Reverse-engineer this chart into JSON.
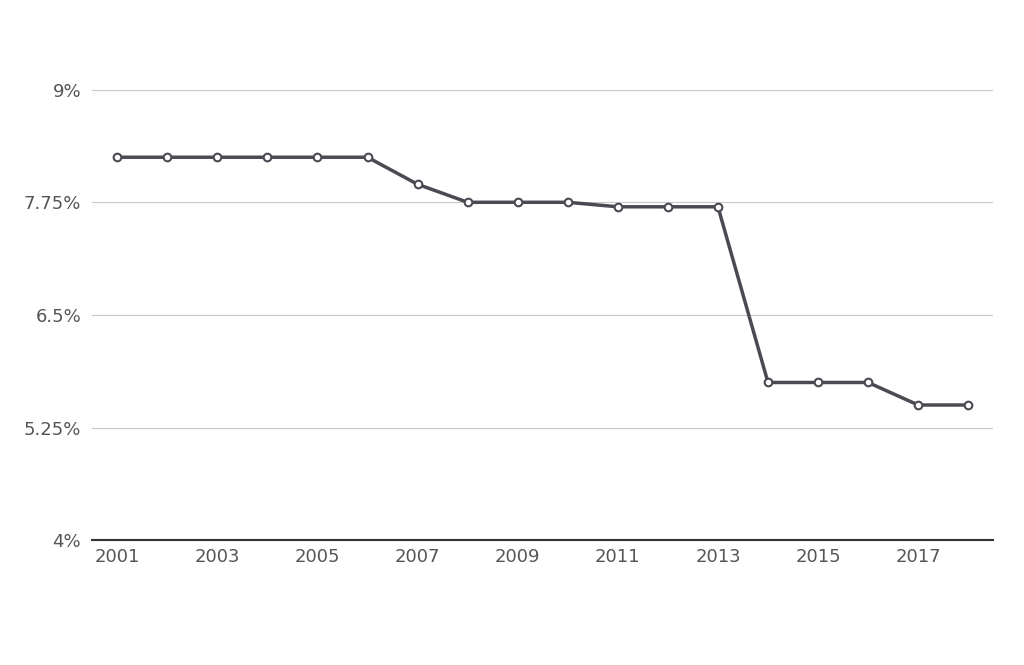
{
  "years": [
    2001,
    2002,
    2003,
    2004,
    2005,
    2006,
    2007,
    2008,
    2009,
    2010,
    2011,
    2012,
    2013,
    2014,
    2015,
    2016,
    2017,
    2018
  ],
  "rates": [
    0.0825,
    0.0825,
    0.0825,
    0.0825,
    0.0825,
    0.0825,
    0.0795,
    0.0775,
    0.0775,
    0.0775,
    0.077,
    0.077,
    0.077,
    0.0575,
    0.0575,
    0.0575,
    0.055,
    0.055
  ],
  "yticks": [
    0.04,
    0.0525,
    0.065,
    0.0775,
    0.09
  ],
  "ytick_labels": [
    "4%",
    "5.25%",
    "6.5%",
    "7.75%",
    "9%"
  ],
  "xticks": [
    2001,
    2003,
    2005,
    2007,
    2009,
    2011,
    2013,
    2015,
    2017
  ],
  "xlim": [
    2000.5,
    2018.5
  ],
  "ylim": [
    0.035,
    0.097
  ],
  "line_color": "#4a4a52",
  "marker_color": "#4a4a52",
  "marker_face": "#ffffff",
  "grid_color": "#c8c8c8",
  "bg_color": "#ffffff",
  "line_width": 2.5,
  "marker_size": 5.5,
  "spine_color": "#333333",
  "tick_label_color": "#555555",
  "tick_fontsize": 13
}
